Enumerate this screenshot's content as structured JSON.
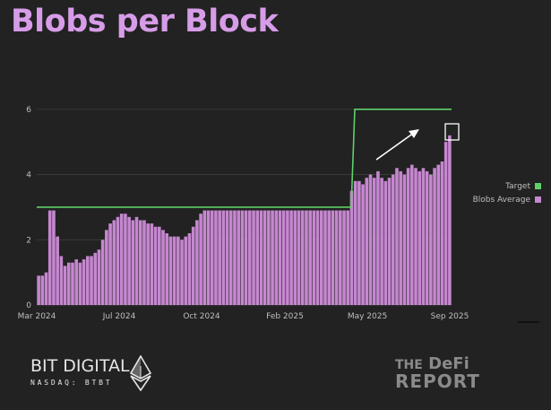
{
  "title": "Blobs per Block",
  "chart_data": {
    "type": "bar",
    "title": "Blobs per Block",
    "x_tick_labels": [
      "Mar 2024",
      "Jul 2024",
      "Oct 2024",
      "Feb 2025",
      "May 2025",
      "Sep 2025"
    ],
    "y_ticks": [
      0,
      2,
      4,
      6
    ],
    "ylim": [
      0,
      6.6
    ],
    "grid": true,
    "legend_placement": "right",
    "series": [
      {
        "name": "Target",
        "type": "line",
        "color": "#5fd068",
        "points": [
          {
            "x": "Mar 2024",
            "y": 3
          },
          {
            "x": "Apr 2025",
            "y": 3
          },
          {
            "x": "May 2025",
            "y": 6
          },
          {
            "x": "Sep 2025",
            "y": 6
          }
        ]
      },
      {
        "name": "Blobs Average",
        "type": "bar",
        "color": "#c587cf",
        "x_start": "Mar 2024",
        "x_end": "Sep 2025",
        "values": [
          0.9,
          0.9,
          1.0,
          2.9,
          2.9,
          2.1,
          1.5,
          1.2,
          1.3,
          1.3,
          1.4,
          1.3,
          1.4,
          1.5,
          1.5,
          1.6,
          1.7,
          2.0,
          2.3,
          2.5,
          2.6,
          2.7,
          2.8,
          2.8,
          2.7,
          2.6,
          2.7,
          2.6,
          2.6,
          2.5,
          2.5,
          2.4,
          2.4,
          2.3,
          2.2,
          2.1,
          2.1,
          2.1,
          2.0,
          2.1,
          2.2,
          2.4,
          2.6,
          2.8,
          2.9,
          2.9,
          2.9,
          2.9,
          2.9,
          2.9,
          2.9,
          2.9,
          2.9,
          2.9,
          2.9,
          2.9,
          2.9,
          2.9,
          2.9,
          2.9,
          2.9,
          2.9,
          2.9,
          2.9,
          2.9,
          2.9,
          2.9,
          2.9,
          2.9,
          2.9,
          2.9,
          2.9,
          2.9,
          2.9,
          2.9,
          2.9,
          2.9,
          2.9,
          2.9,
          2.9,
          2.9,
          2.9,
          2.9,
          3.5,
          3.8,
          3.8,
          3.7,
          3.9,
          4.0,
          3.9,
          4.1,
          3.9,
          3.8,
          3.9,
          4.0,
          4.2,
          4.1,
          4.0,
          4.2,
          4.3,
          4.2,
          4.1,
          4.2,
          4.1,
          4.0,
          4.2,
          4.3,
          4.4,
          5.0,
          5.2
        ]
      }
    ],
    "annotations": [
      "upward trend arrow",
      "highlight box around latest values"
    ]
  },
  "legend": [
    {
      "label": "Target",
      "color": "#5fd068"
    },
    {
      "label": "Blobs Average",
      "color": "#c587cf"
    }
  ],
  "logos": {
    "left_name": "BIT DIGITAL",
    "left_sub": "NASDAQ: BTBT",
    "right_line1_small": "THE",
    "right_line1": "DeFi",
    "right_line2": "REPORT"
  },
  "colors": {
    "background": "#222222",
    "title": "#d79ce8",
    "grid": "#3a3a3a",
    "axis_text": "#bfbfbf"
  }
}
